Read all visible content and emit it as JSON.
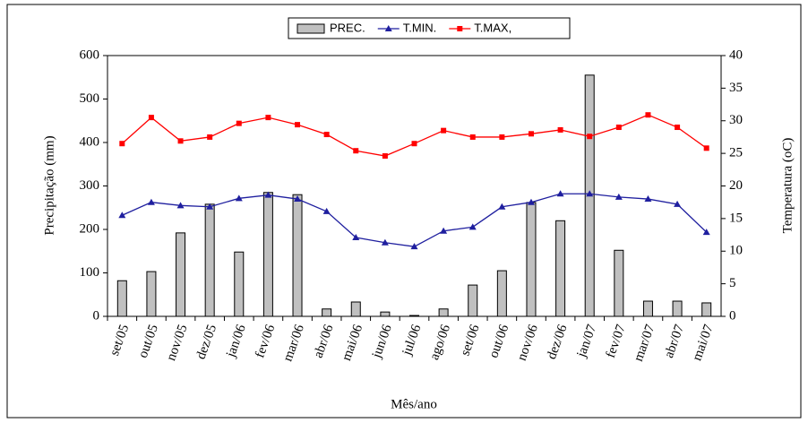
{
  "chart_data": {
    "type": "bar-line",
    "categories": [
      "set/05",
      "out/05",
      "nov/05",
      "dez/05",
      "jan/06",
      "fev/06",
      "mar/06",
      "abr/06",
      "mai/06",
      "jun/06",
      "jul/06",
      "ago/06",
      "set/06",
      "out/06",
      "nov/06",
      "dez/06",
      "jan/07",
      "fev/07",
      "mar/07",
      "abr/07",
      "mai/07"
    ],
    "series": [
      {
        "name": "PREC.",
        "color": "#c0c0c0",
        "type": "bar",
        "values": [
          82,
          103,
          192,
          258,
          148,
          285,
          280,
          17,
          33,
          10,
          2,
          17,
          72,
          105,
          262,
          220,
          555,
          152,
          35,
          35,
          31
        ]
      },
      {
        "name": "T.MIN.",
        "color": "#1f1f9f",
        "type": "line",
        "axis": "y2",
        "values": [
          15.5,
          17.5,
          17.0,
          16.8,
          18.1,
          18.6,
          18.0,
          16.1,
          12.1,
          11.3,
          10.7,
          13.1,
          13.7,
          16.8,
          17.5,
          18.8,
          18.8,
          18.3,
          18.0,
          17.2,
          12.9
        ]
      },
      {
        "name": "T.MAX,",
        "color": "#ff0000",
        "type": "line",
        "axis": "y2",
        "values": [
          26.5,
          30.5,
          26.9,
          27.5,
          29.6,
          30.5,
          29.4,
          27.9,
          25.4,
          24.6,
          26.5,
          28.5,
          27.5,
          27.5,
          28.0,
          28.6,
          27.6,
          29.0,
          30.9,
          29.0,
          25.8
        ]
      }
    ],
    "ylabel": "Precipitação (mm)",
    "y2label": "Temperatura (oC)",
    "xlabel": "Mês/ano",
    "ylim": [
      0,
      600
    ],
    "yticks": [
      0,
      100,
      200,
      300,
      400,
      500,
      600
    ],
    "y2lim": [
      0,
      40
    ],
    "y2ticks": [
      0,
      5,
      10,
      15,
      20,
      25,
      30,
      35,
      40
    ],
    "grid": false,
    "legend": "top"
  }
}
